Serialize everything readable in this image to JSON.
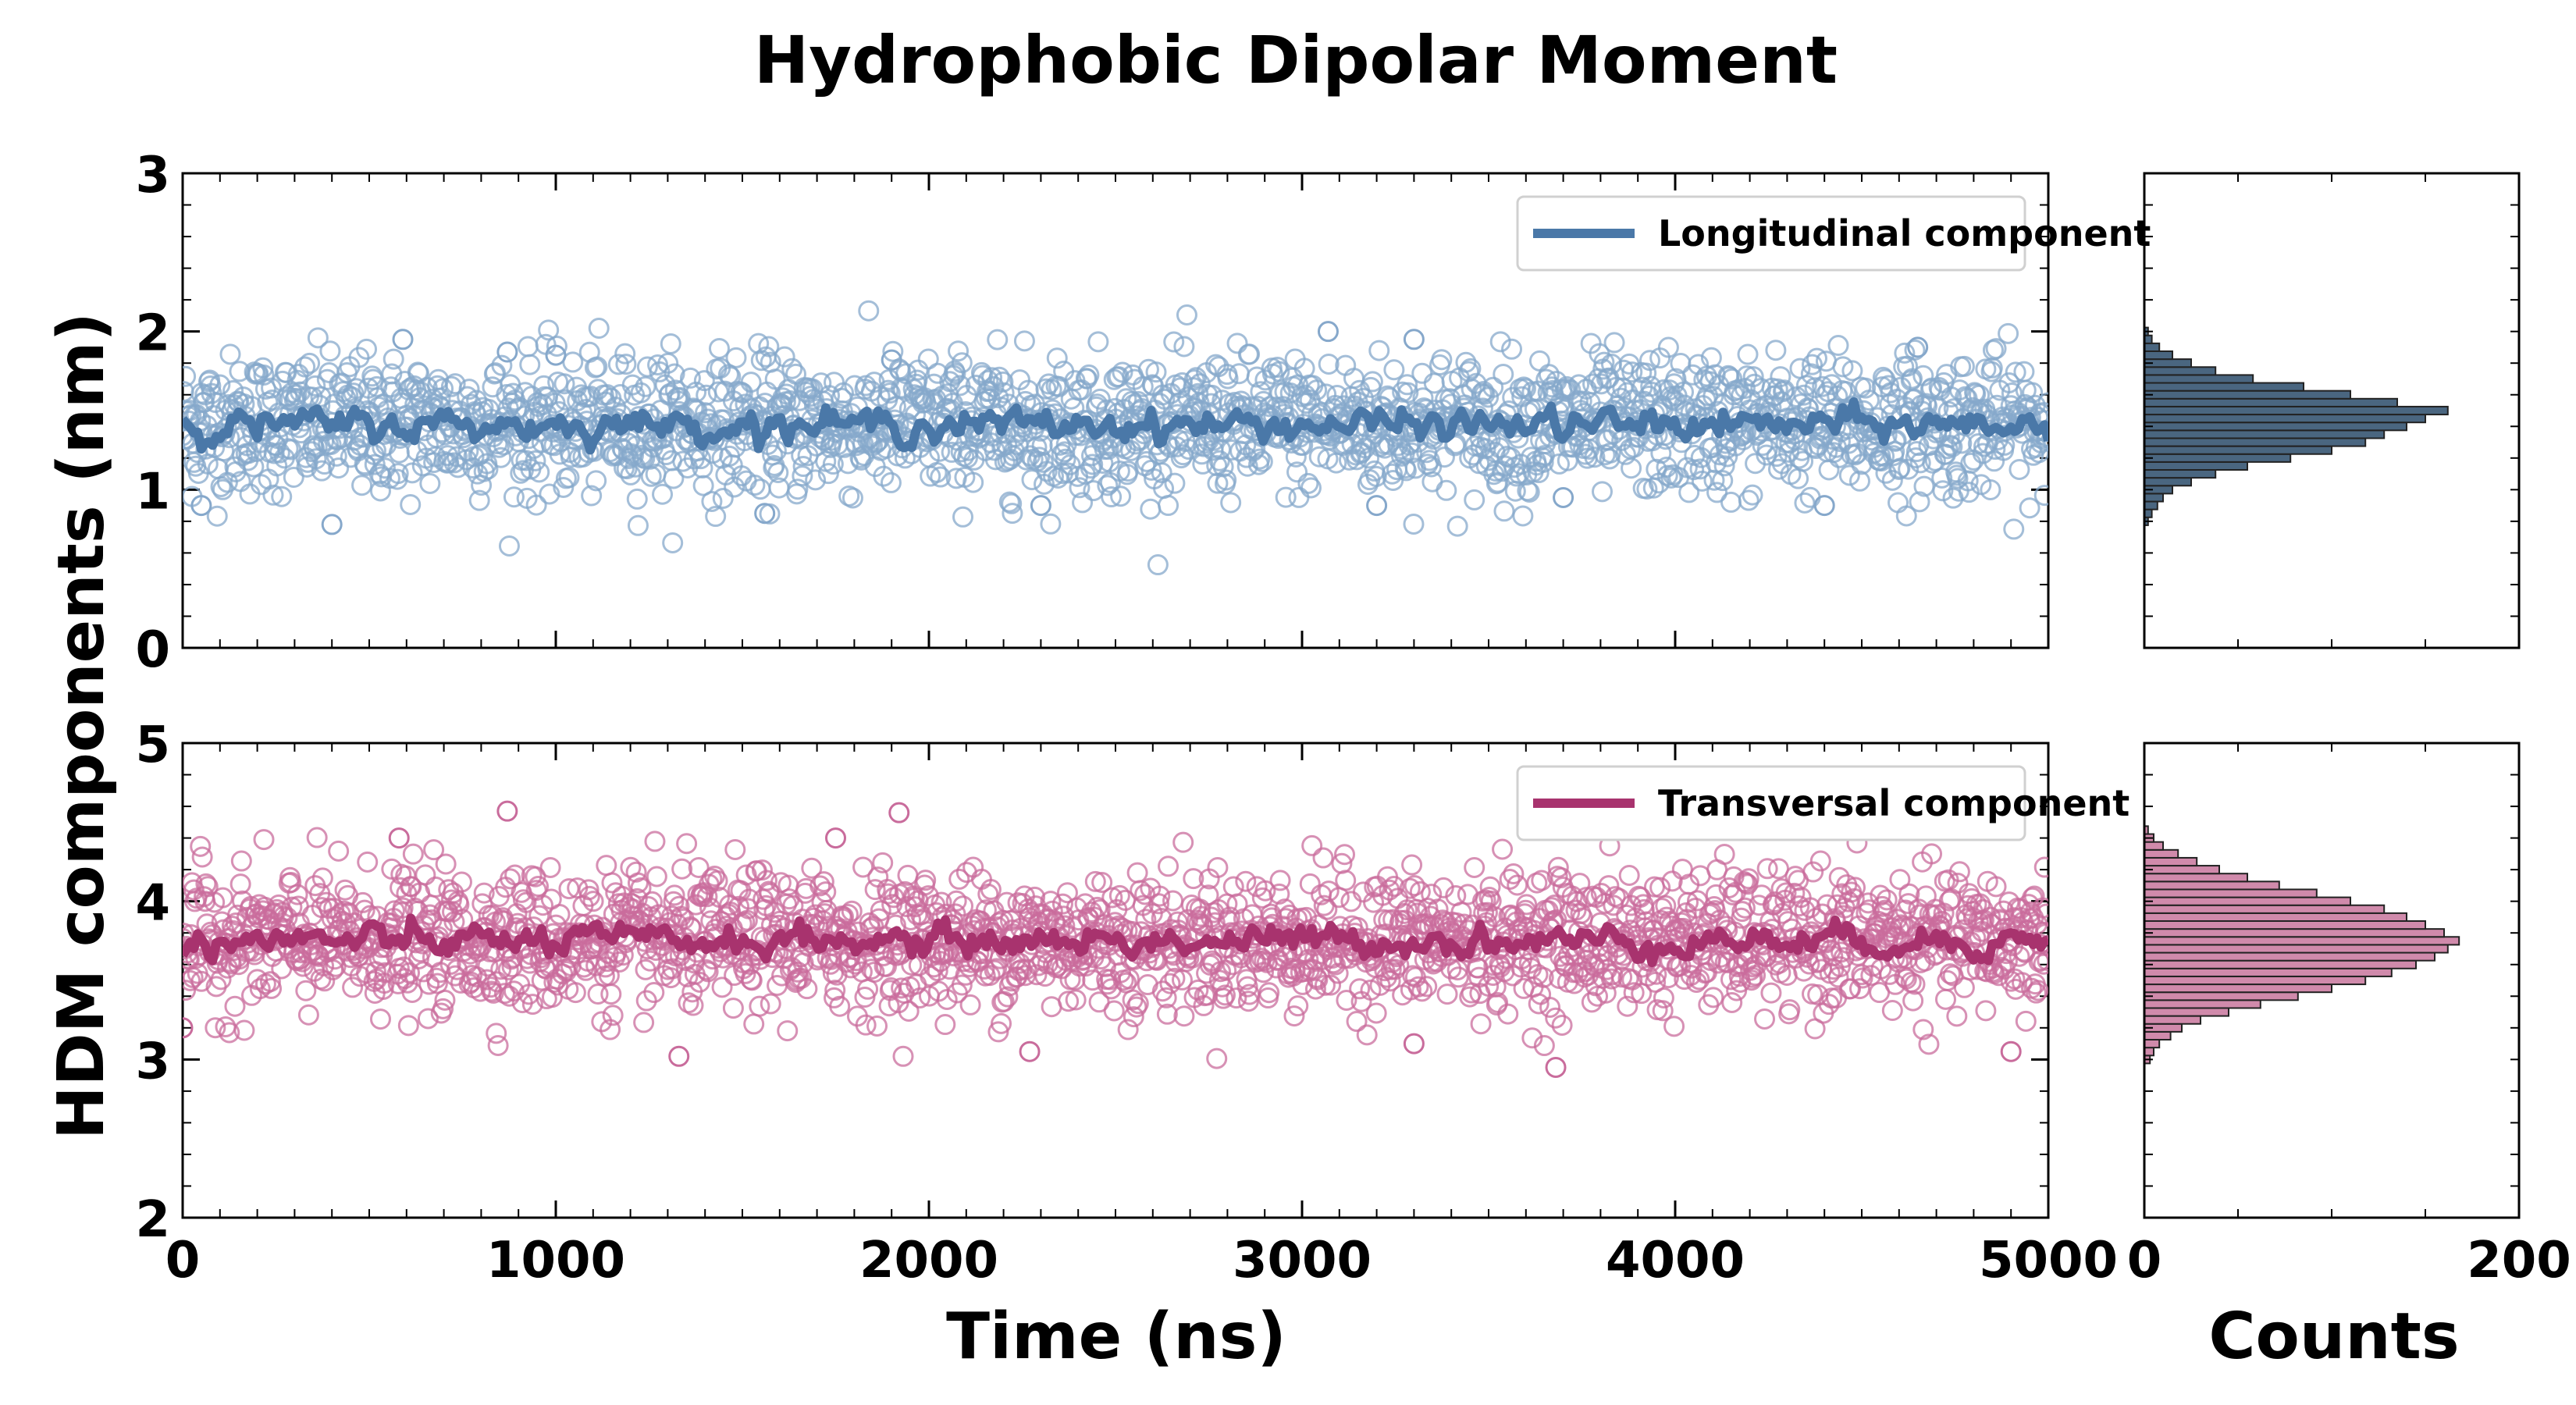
{
  "title": "Hydrophobic Dipolar Moment",
  "ylabel": "HDM components (nm)",
  "xlabel_time": "Time (ns)",
  "xlabel_counts": "Counts",
  "chart_data": [
    {
      "type": "scatter",
      "panel": "top",
      "series_name": "Longitudinal component",
      "legend_loc": "upper right",
      "color": "#4a78a8",
      "marker_color": "#86a8cb",
      "xlim": [
        0,
        5000
      ],
      "ylim": [
        0,
        3
      ],
      "xticks": [
        0,
        1000,
        2000,
        3000,
        4000,
        5000
      ],
      "yticks": [
        0,
        1,
        2,
        3
      ],
      "mean": 1.41,
      "spread": 0.22,
      "outliers": [
        [
          50,
          0.9
        ],
        [
          400,
          0.78
        ],
        [
          590,
          1.95
        ],
        [
          870,
          1.87
        ],
        [
          1560,
          0.85
        ],
        [
          1900,
          1.82
        ],
        [
          3070,
          2.0
        ],
        [
          3300,
          1.95
        ],
        [
          3700,
          0.95
        ],
        [
          4400,
          0.9
        ],
        [
          4650,
          1.9
        ],
        [
          1000,
          1.85
        ],
        [
          2300,
          0.9
        ],
        [
          3200,
          0.9
        ]
      ]
    },
    {
      "type": "scatter",
      "panel": "bottom",
      "series_name": "Transversal component",
      "legend_loc": "upper right",
      "color": "#a8336e",
      "marker_color": "#c96c9c",
      "xlim": [
        0,
        5000
      ],
      "ylim": [
        2,
        5
      ],
      "xticks": [
        0,
        1000,
        2000,
        3000,
        4000,
        5000
      ],
      "yticks": [
        2,
        3,
        4,
        5
      ],
      "mean": 3.75,
      "spread": 0.22,
      "outliers": [
        [
          870,
          4.57
        ],
        [
          1920,
          4.56
        ],
        [
          1330,
          3.02
        ],
        [
          2270,
          3.05
        ],
        [
          3680,
          2.95
        ],
        [
          4900,
          3.05
        ],
        [
          0,
          3.2
        ],
        [
          3300,
          3.1
        ],
        [
          1750,
          4.4
        ],
        [
          580,
          4.4
        ],
        [
          4860,
          4.45
        ]
      ]
    },
    {
      "type": "bar",
      "panel": "top-hist",
      "orientation": "horizontal",
      "xlabel": "Counts",
      "xlim": [
        0,
        200
      ],
      "ylim": [
        0,
        3
      ],
      "bin_centers": [
        0.8,
        0.85,
        0.9,
        0.95,
        1.0,
        1.05,
        1.1,
        1.15,
        1.2,
        1.25,
        1.3,
        1.35,
        1.4,
        1.45,
        1.5,
        1.55,
        1.6,
        1.65,
        1.7,
        1.75,
        1.8,
        1.85,
        1.9,
        1.95,
        2.0
      ],
      "counts": [
        2,
        4,
        7,
        10,
        15,
        25,
        38,
        55,
        78,
        100,
        118,
        128,
        140,
        150,
        162,
        135,
        110,
        85,
        58,
        38,
        25,
        15,
        8,
        4,
        2
      ],
      "fill": "#4a6680"
    },
    {
      "type": "bar",
      "panel": "bottom-hist",
      "orientation": "horizontal",
      "xlabel": "Counts",
      "xlim": [
        0,
        200
      ],
      "ylim": [
        2,
        5
      ],
      "bin_centers": [
        3.0,
        3.05,
        3.1,
        3.15,
        3.2,
        3.25,
        3.3,
        3.35,
        3.4,
        3.45,
        3.5,
        3.55,
        3.6,
        3.65,
        3.7,
        3.75,
        3.8,
        3.85,
        3.9,
        3.95,
        4.0,
        4.05,
        4.1,
        4.15,
        4.2,
        4.25,
        4.3,
        4.35,
        4.4,
        4.45
      ],
      "counts": [
        3,
        5,
        8,
        14,
        20,
        30,
        45,
        62,
        82,
        100,
        118,
        132,
        145,
        155,
        162,
        168,
        160,
        150,
        140,
        128,
        110,
        92,
        72,
        55,
        40,
        28,
        18,
        10,
        5,
        2
      ],
      "fill": "#d08aab"
    }
  ]
}
